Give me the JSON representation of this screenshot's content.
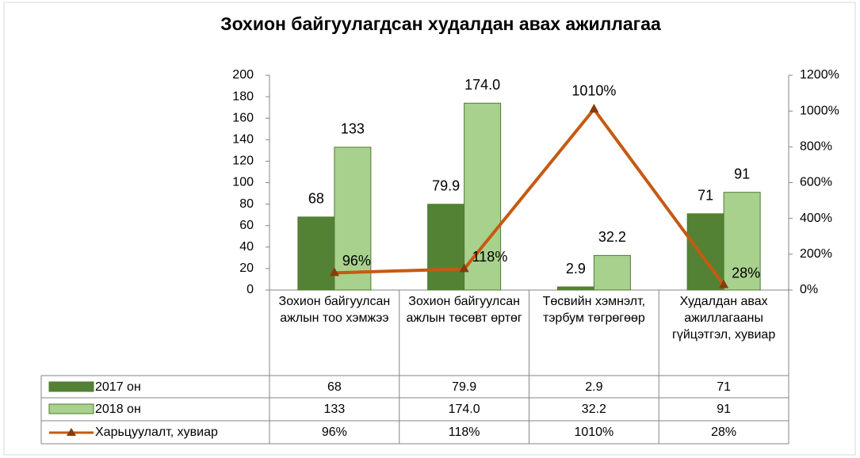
{
  "chart_data": {
    "type": "bar",
    "title": "Зохион байгуулагдсан худалдан авах ажиллагаа",
    "categories": [
      "Зохион байгуулсан ажлын тоо хэмжээ",
      "Зохион байгуулсан ажлын төсөвт өртөг",
      "Төсвийн хэмнэлт, тэрбум төгрөгөөр",
      "Худалдан авах ажиллагааны гүйцэтгэл, хувиар"
    ],
    "series": [
      {
        "name": "2017 он",
        "type": "bar",
        "color": "#548235",
        "values": [
          68,
          79.9,
          2.9,
          71
        ]
      },
      {
        "name": "2018 он",
        "type": "bar",
        "color": "#a9d18e",
        "values": [
          133,
          174,
          32.2,
          91
        ],
        "value_labels": [
          "133",
          "174.0",
          "32.2",
          "91"
        ]
      },
      {
        "name": "Харьцуулалт, хувиар",
        "type": "line",
        "axis": "y2",
        "color": "#c55a11",
        "values": [
          96,
          118,
          1010,
          28
        ],
        "value_labels": [
          "96%",
          "118%",
          "1010%",
          "28%"
        ]
      }
    ],
    "ylim": [
      0,
      200
    ],
    "yticks": [
      0,
      20,
      40,
      60,
      80,
      100,
      120,
      140,
      160,
      180,
      200
    ],
    "y2lim": [
      0,
      1200
    ],
    "y2ticks": [
      {
        "value": 0,
        "label": "0%"
      },
      {
        "value": 200,
        "label": "200%"
      },
      {
        "value": 400,
        "label": "400%"
      },
      {
        "value": 600,
        "label": "600%"
      },
      {
        "value": 800,
        "label": "800%"
      },
      {
        "value": 1000,
        "label": "1000%"
      },
      {
        "value": 1200,
        "label": "1200%"
      }
    ],
    "data_table": true
  }
}
